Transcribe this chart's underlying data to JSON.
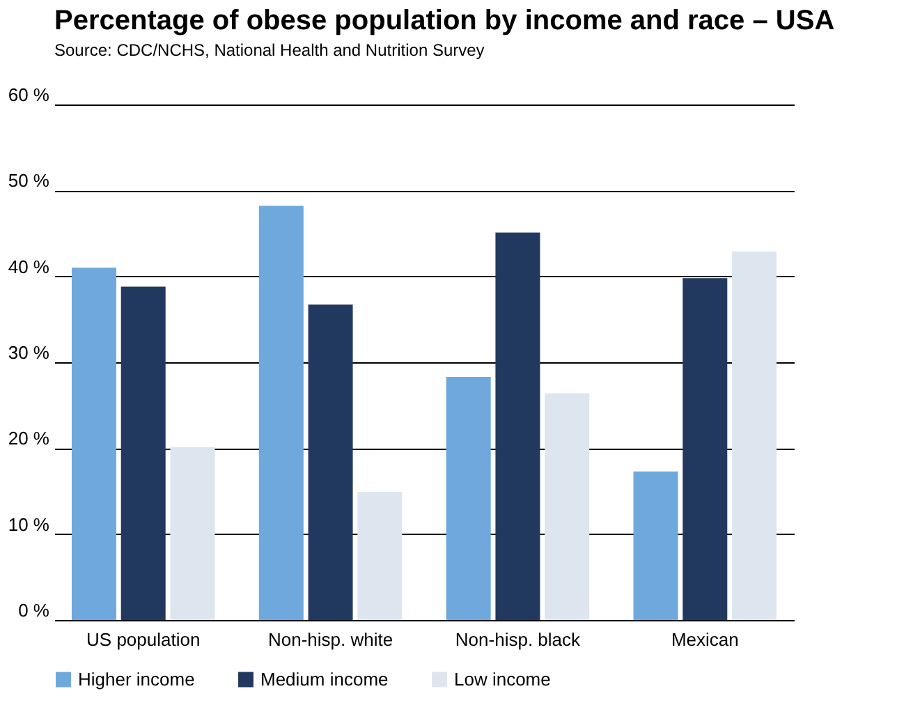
{
  "chart_data": {
    "type": "bar",
    "title": "Percentage of obese population by income and race – USA",
    "subtitle": "Source: CDC/NCHS, National Health and Nutrition Survey",
    "categories": [
      "US population",
      "Non-hisp. white",
      "Non-hisp. black",
      "Mexican"
    ],
    "series": [
      {
        "name": "Higher income",
        "color": "#6fa8dc",
        "values": [
          41.0,
          48.2,
          28.3,
          17.3
        ]
      },
      {
        "name": "Medium income",
        "color": "#22395f",
        "values": [
          38.8,
          36.7,
          45.1,
          39.8
        ]
      },
      {
        "name": "Low income",
        "color": "#dde6ee",
        "values": [
          20.1,
          14.9,
          26.4,
          42.9
        ]
      }
    ],
    "ylim": [
      0,
      60
    ],
    "yticks": [
      {
        "value": 0,
        "label": "0 %"
      },
      {
        "value": 10,
        "label": "10 %"
      },
      {
        "value": 20,
        "label": "20 %"
      },
      {
        "value": 30,
        "label": "30 %"
      },
      {
        "value": 40,
        "label": "40 %"
      },
      {
        "value": 50,
        "label": "50 %"
      },
      {
        "value": 60,
        "label": "60 %"
      }
    ],
    "grid": "y",
    "legend": "bottom"
  }
}
